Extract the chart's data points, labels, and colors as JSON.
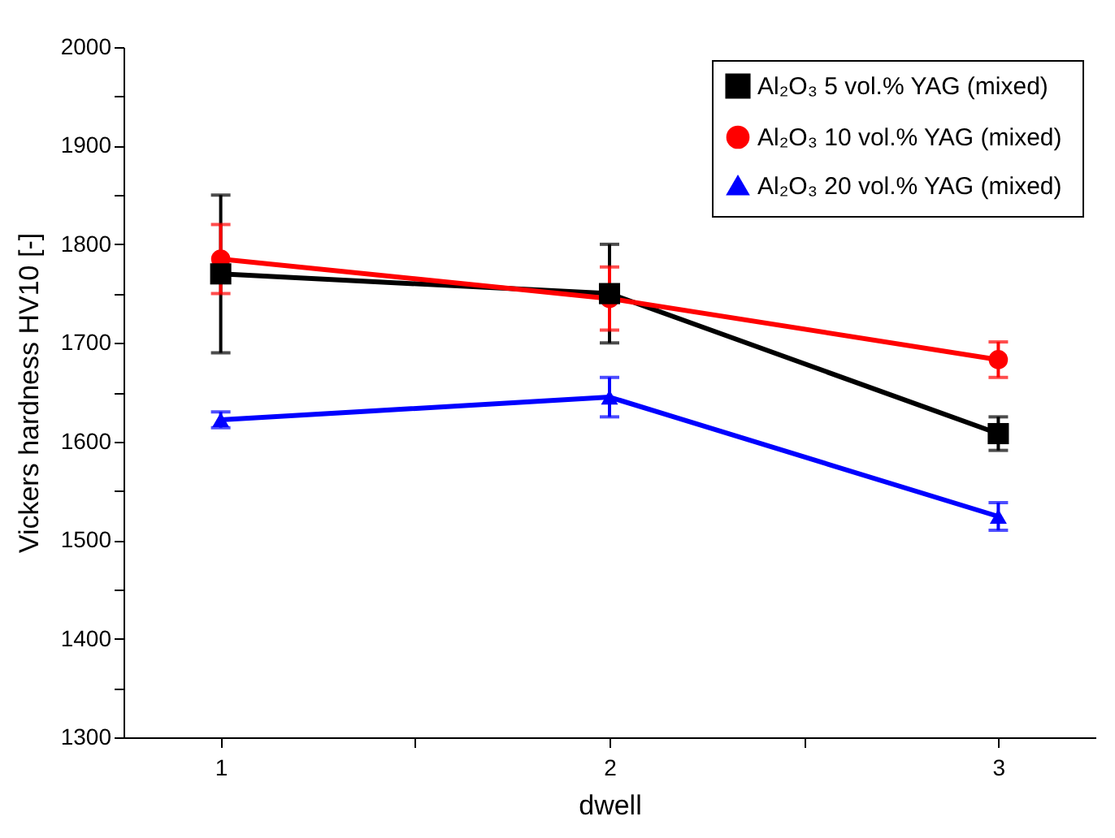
{
  "chart_data": {
    "type": "line",
    "xlabel": "dwell",
    "ylabel": "Vickers hardness HV10 [-]",
    "x": [
      1,
      2,
      3
    ],
    "series": [
      {
        "name": "Al₂O₃   5 vol.% YAG (mixed)",
        "color": "#000000",
        "marker": "square",
        "values": [
          1770,
          1750,
          1608
        ],
        "errors": [
          80,
          50,
          17
        ]
      },
      {
        "name": "Al₂O₃  10 vol.% YAG (mixed)",
        "color": "#ff0000",
        "marker": "circle",
        "values": [
          1785,
          1745,
          1683
        ],
        "errors": [
          35,
          32,
          18
        ]
      },
      {
        "name": "Al₂O₃  20 vol.% YAG (mixed)",
        "color": "#0000ff",
        "marker": "triangle",
        "values": [
          1622,
          1645,
          1524
        ],
        "errors": [
          8,
          20,
          14
        ]
      }
    ],
    "xlim": [
      0.75,
      3.25
    ],
    "xticks": [
      1,
      {
        "value": 1.5,
        "label": null
      },
      2,
      {
        "value": 2.5,
        "label": null
      },
      3
    ],
    "ylim": [
      1300,
      2000
    ],
    "yticks": [
      1300,
      {
        "value": 1350,
        "label": null
      },
      1400,
      {
        "value": 1450,
        "label": null
      },
      1500,
      {
        "value": 1550,
        "label": null
      },
      1600,
      {
        "value": 1650,
        "label": null
      },
      1700,
      {
        "value": 1750,
        "label": null
      },
      1800,
      {
        "value": 1850,
        "label": null
      },
      1900,
      {
        "value": 1950,
        "label": null
      },
      2000
    ],
    "grid": false,
    "legend": "top right",
    "line_style": "solid"
  }
}
